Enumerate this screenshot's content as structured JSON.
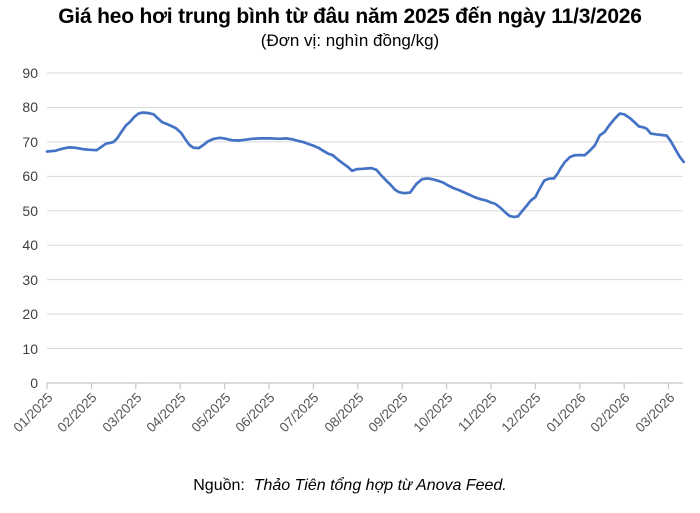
{
  "chart_data": {
    "type": "line",
    "title": "Giá heo hơi trung bình từ đâu năm 2025 đến ngày 11/3/2026",
    "subtitle": "(Đơn vị: nghìn đồng/kg)",
    "series_name": "Giá heo hơi trung bình",
    "unit": "nghìn đồng/kg",
    "grid": "horizontal",
    "legend_position": "none",
    "ylim": [
      0,
      90
    ],
    "y_ticks": [
      0,
      10,
      20,
      30,
      40,
      50,
      60,
      70,
      80,
      90
    ],
    "x_tick_labels": [
      "01/2025",
      "02/2025",
      "03/2025",
      "04/2025",
      "05/2025",
      "06/2025",
      "07/2025",
      "08/2025",
      "09/2025",
      "10/2025",
      "11/2025",
      "12/2025",
      "01/2026",
      "02/2026",
      "03/2026"
    ],
    "x_encoding": "months elapsed since 01/2025 (0 = Jan 1 2025, fractional part = position within month; series ends 11/3/2026)",
    "line_color": "#4472c4",
    "gridline_color": "#d9d9d9",
    "axis_color": "#c6c6c6",
    "y_label_color": "#404040",
    "x_label_color": "#555555",
    "points": [
      [
        0.0,
        67.2
      ],
      [
        0.18,
        67.4
      ],
      [
        0.34,
        68.0
      ],
      [
        0.48,
        68.4
      ],
      [
        0.63,
        68.3
      ],
      [
        0.8,
        67.9
      ],
      [
        0.97,
        67.7
      ],
      [
        1.12,
        67.6
      ],
      [
        1.23,
        68.6
      ],
      [
        1.33,
        69.5
      ],
      [
        1.42,
        69.7
      ],
      [
        1.5,
        70.0
      ],
      [
        1.58,
        71.0
      ],
      [
        1.68,
        73.0
      ],
      [
        1.78,
        74.8
      ],
      [
        1.87,
        75.8
      ],
      [
        1.97,
        77.3
      ],
      [
        2.06,
        78.2
      ],
      [
        2.15,
        78.5
      ],
      [
        2.28,
        78.4
      ],
      [
        2.4,
        78.0
      ],
      [
        2.5,
        76.8
      ],
      [
        2.6,
        75.7
      ],
      [
        2.7,
        75.2
      ],
      [
        2.8,
        74.6
      ],
      [
        2.9,
        74.0
      ],
      [
        3.02,
        72.6
      ],
      [
        3.12,
        70.7
      ],
      [
        3.21,
        69.1
      ],
      [
        3.3,
        68.3
      ],
      [
        3.42,
        68.2
      ],
      [
        3.52,
        69.1
      ],
      [
        3.63,
        70.2
      ],
      [
        3.76,
        70.9
      ],
      [
        3.9,
        71.2
      ],
      [
        4.03,
        70.9
      ],
      [
        4.16,
        70.5
      ],
      [
        4.3,
        70.4
      ],
      [
        4.46,
        70.6
      ],
      [
        4.62,
        70.9
      ],
      [
        4.8,
        71.0
      ],
      [
        5.02,
        71.0
      ],
      [
        5.24,
        70.9
      ],
      [
        5.4,
        71.0
      ],
      [
        5.54,
        70.7
      ],
      [
        5.66,
        70.3
      ],
      [
        5.78,
        69.9
      ],
      [
        5.89,
        69.4
      ],
      [
        6.0,
        68.9
      ],
      [
        6.11,
        68.3
      ],
      [
        6.22,
        67.4
      ],
      [
        6.33,
        66.6
      ],
      [
        6.44,
        66.1
      ],
      [
        6.55,
        64.9
      ],
      [
        6.66,
        63.8
      ],
      [
        6.78,
        62.7
      ],
      [
        6.87,
        61.6
      ],
      [
        6.98,
        62.1
      ],
      [
        7.11,
        62.2
      ],
      [
        7.23,
        62.3
      ],
      [
        7.31,
        62.4
      ],
      [
        7.42,
        61.9
      ],
      [
        7.52,
        60.4
      ],
      [
        7.63,
        58.9
      ],
      [
        7.74,
        57.5
      ],
      [
        7.84,
        56.1
      ],
      [
        7.93,
        55.4
      ],
      [
        8.05,
        55.1
      ],
      [
        8.18,
        55.3
      ],
      [
        8.32,
        57.8
      ],
      [
        8.45,
        59.2
      ],
      [
        8.58,
        59.4
      ],
      [
        8.7,
        59.1
      ],
      [
        8.81,
        58.7
      ],
      [
        8.92,
        58.2
      ],
      [
        9.03,
        57.4
      ],
      [
        9.15,
        56.6
      ],
      [
        9.28,
        56.0
      ],
      [
        9.4,
        55.3
      ],
      [
        9.52,
        54.6
      ],
      [
        9.64,
        53.9
      ],
      [
        9.76,
        53.4
      ],
      [
        9.88,
        53.0
      ],
      [
        10.0,
        52.4
      ],
      [
        10.1,
        52.0
      ],
      [
        10.21,
        50.9
      ],
      [
        10.33,
        49.4
      ],
      [
        10.42,
        48.5
      ],
      [
        10.52,
        48.2
      ],
      [
        10.61,
        48.4
      ],
      [
        10.7,
        49.9
      ],
      [
        10.8,
        51.4
      ],
      [
        10.89,
        52.9
      ],
      [
        11.0,
        54.0
      ],
      [
        11.1,
        56.5
      ],
      [
        11.2,
        58.8
      ],
      [
        11.3,
        59.3
      ],
      [
        11.42,
        59.4
      ],
      [
        11.5,
        60.8
      ],
      [
        11.56,
        62.2
      ],
      [
        11.66,
        64.1
      ],
      [
        11.78,
        65.6
      ],
      [
        11.88,
        66.1
      ],
      [
        12.0,
        66.2
      ],
      [
        12.11,
        66.1
      ],
      [
        12.23,
        67.5
      ],
      [
        12.34,
        69.0
      ],
      [
        12.45,
        71.9
      ],
      [
        12.56,
        72.9
      ],
      [
        12.67,
        74.9
      ],
      [
        12.79,
        76.8
      ],
      [
        12.9,
        78.2
      ],
      [
        13.0,
        78.0
      ],
      [
        13.14,
        76.8
      ],
      [
        13.24,
        75.6
      ],
      [
        13.33,
        74.5
      ],
      [
        13.44,
        74.2
      ],
      [
        13.51,
        73.8
      ],
      [
        13.6,
        72.4
      ],
      [
        13.71,
        72.2
      ],
      [
        13.85,
        72.0
      ],
      [
        13.96,
        71.8
      ],
      [
        14.05,
        70.2
      ],
      [
        14.16,
        67.7
      ],
      [
        14.25,
        65.7
      ],
      [
        14.34,
        64.2
      ]
    ]
  },
  "source": {
    "prefix": "Nguồn:",
    "text": "Thảo Tiên tổng hợp từ Anova Feed."
  }
}
